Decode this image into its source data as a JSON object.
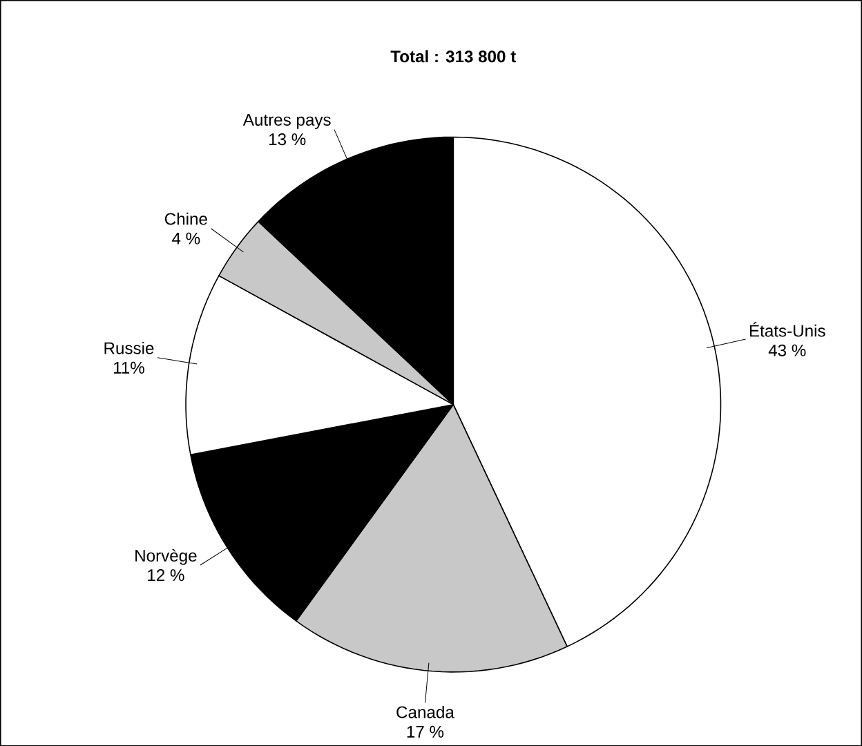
{
  "chart_data": {
    "type": "pie",
    "title": "Total : 313 800 t",
    "categories": [
      "États-Unis",
      "Canada",
      "Norvège",
      "Russie",
      "Chine",
      "Autres pays"
    ],
    "values": [
      43,
      17,
      12,
      11,
      4,
      13
    ],
    "value_labels": [
      "43 %",
      "17 %",
      "12 %",
      "11%",
      "4 %",
      "13 %"
    ],
    "colors": [
      "#ffffff",
      "#c8c8c8",
      "#000000",
      "#ffffff",
      "#c8c8c8",
      "#000000"
    ]
  }
}
